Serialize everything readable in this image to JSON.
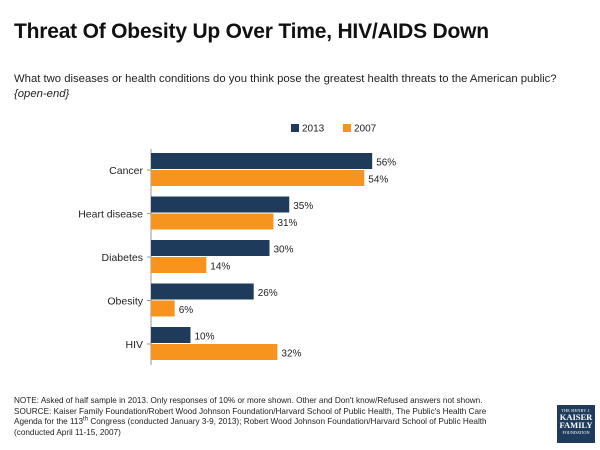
{
  "header": {
    "title": "Threat Of Obesity Up Over Time, HIV/AIDS Down",
    "question": "What two diseases or health conditions do you think pose the greatest health threats to the American public?",
    "question_note": "{open-end}"
  },
  "chart_data": {
    "type": "bar",
    "orientation": "horizontal",
    "categories": [
      "Cancer",
      "Heart disease",
      "Diabetes",
      "Obesity",
      "HIV"
    ],
    "series": [
      {
        "name": "2013",
        "color": "#1f3b5c",
        "values": [
          56,
          35,
          30,
          26,
          10
        ]
      },
      {
        "name": "2007",
        "color": "#f7941e",
        "values": [
          54,
          31,
          14,
          6,
          32
        ]
      }
    ],
    "value_suffix": "%",
    "xlim": [
      0,
      100
    ],
    "legend_position": "top",
    "grid": false
  },
  "footer": {
    "note": "NOTE: Asked of half sample in 2013. Only responses of 10% or more shown. Other and Don't know/Refused  answers not shown.",
    "source_line1": "SOURCE: Kaiser Family Foundation/Robert Wood Johnson Foundation/Harvard School of Public Health, The Public's Health Care",
    "source_line2_pre": "Agenda for the 113",
    "source_line2_sup": "th",
    "source_line2_post": " Congress (conducted January 3-9, 2013); Robert Wood Johnson Foundation/Harvard School of Public Health",
    "source_line3": "(conducted April 11-15, 2007)"
  },
  "logo": {
    "line1": "THE HENRY J.",
    "line2a": "KAISER",
    "line2b": "FAMILY",
    "line3": "FOUNDATION"
  }
}
